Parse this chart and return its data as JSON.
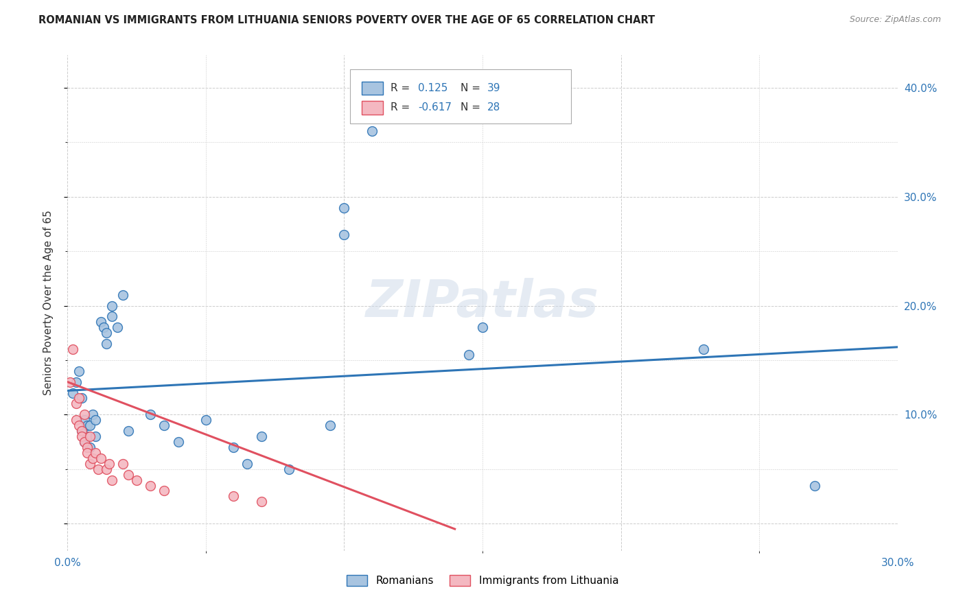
{
  "title": "ROMANIAN VS IMMIGRANTS FROM LITHUANIA SENIORS POVERTY OVER THE AGE OF 65 CORRELATION CHART",
  "source": "Source: ZipAtlas.com",
  "ylabel": "Seniors Poverty Over the Age of 65",
  "xlim": [
    0.0,
    0.3
  ],
  "ylim": [
    -0.025,
    0.43
  ],
  "ytick_positions": [
    0.0,
    0.1,
    0.2,
    0.3,
    0.4
  ],
  "ytick_labels": [
    "",
    "10.0%",
    "20.0%",
    "30.0%",
    "40.0%"
  ],
  "xtick_positions": [
    0.0,
    0.1,
    0.2,
    0.3
  ],
  "xtick_labels_show": [
    "0.0%",
    "",
    "",
    "30.0%"
  ],
  "grid_color": "#cccccc",
  "background_color": "#ffffff",
  "romanian_color": "#a8c4e0",
  "romanian_line_color": "#2e75b6",
  "lithuania_color": "#f4b8c1",
  "lithuania_line_color": "#e05060",
  "r_romanian": 0.125,
  "n_romanian": 39,
  "r_lithuania": -0.617,
  "n_lithuania": 28,
  "romanian_x": [
    0.002,
    0.003,
    0.004,
    0.005,
    0.005,
    0.006,
    0.006,
    0.007,
    0.007,
    0.008,
    0.008,
    0.009,
    0.01,
    0.01,
    0.012,
    0.013,
    0.014,
    0.014,
    0.016,
    0.016,
    0.018,
    0.02,
    0.022,
    0.03,
    0.035,
    0.04,
    0.05,
    0.06,
    0.065,
    0.07,
    0.08,
    0.095,
    0.1,
    0.1,
    0.11,
    0.145,
    0.15,
    0.23,
    0.27
  ],
  "romanian_y": [
    0.12,
    0.13,
    0.14,
    0.115,
    0.085,
    0.095,
    0.075,
    0.09,
    0.08,
    0.09,
    0.07,
    0.1,
    0.095,
    0.08,
    0.185,
    0.18,
    0.175,
    0.165,
    0.2,
    0.19,
    0.18,
    0.21,
    0.085,
    0.1,
    0.09,
    0.075,
    0.095,
    0.07,
    0.055,
    0.08,
    0.05,
    0.09,
    0.29,
    0.265,
    0.36,
    0.155,
    0.18,
    0.16,
    0.035
  ],
  "lithuania_x": [
    0.001,
    0.002,
    0.003,
    0.003,
    0.004,
    0.004,
    0.005,
    0.005,
    0.006,
    0.006,
    0.007,
    0.007,
    0.008,
    0.008,
    0.009,
    0.01,
    0.011,
    0.012,
    0.014,
    0.015,
    0.016,
    0.02,
    0.022,
    0.025,
    0.03,
    0.035,
    0.06,
    0.07
  ],
  "lithuania_y": [
    0.13,
    0.16,
    0.11,
    0.095,
    0.115,
    0.09,
    0.085,
    0.08,
    0.1,
    0.075,
    0.07,
    0.065,
    0.08,
    0.055,
    0.06,
    0.065,
    0.05,
    0.06,
    0.05,
    0.055,
    0.04,
    0.055,
    0.045,
    0.04,
    0.035,
    0.03,
    0.025,
    0.02
  ],
  "blue_line_x0": 0.0,
  "blue_line_y0": 0.122,
  "blue_line_x1": 0.3,
  "blue_line_y1": 0.162,
  "pink_line_x0": 0.0,
  "pink_line_y0": 0.13,
  "pink_line_x1": 0.14,
  "pink_line_y1": -0.005
}
